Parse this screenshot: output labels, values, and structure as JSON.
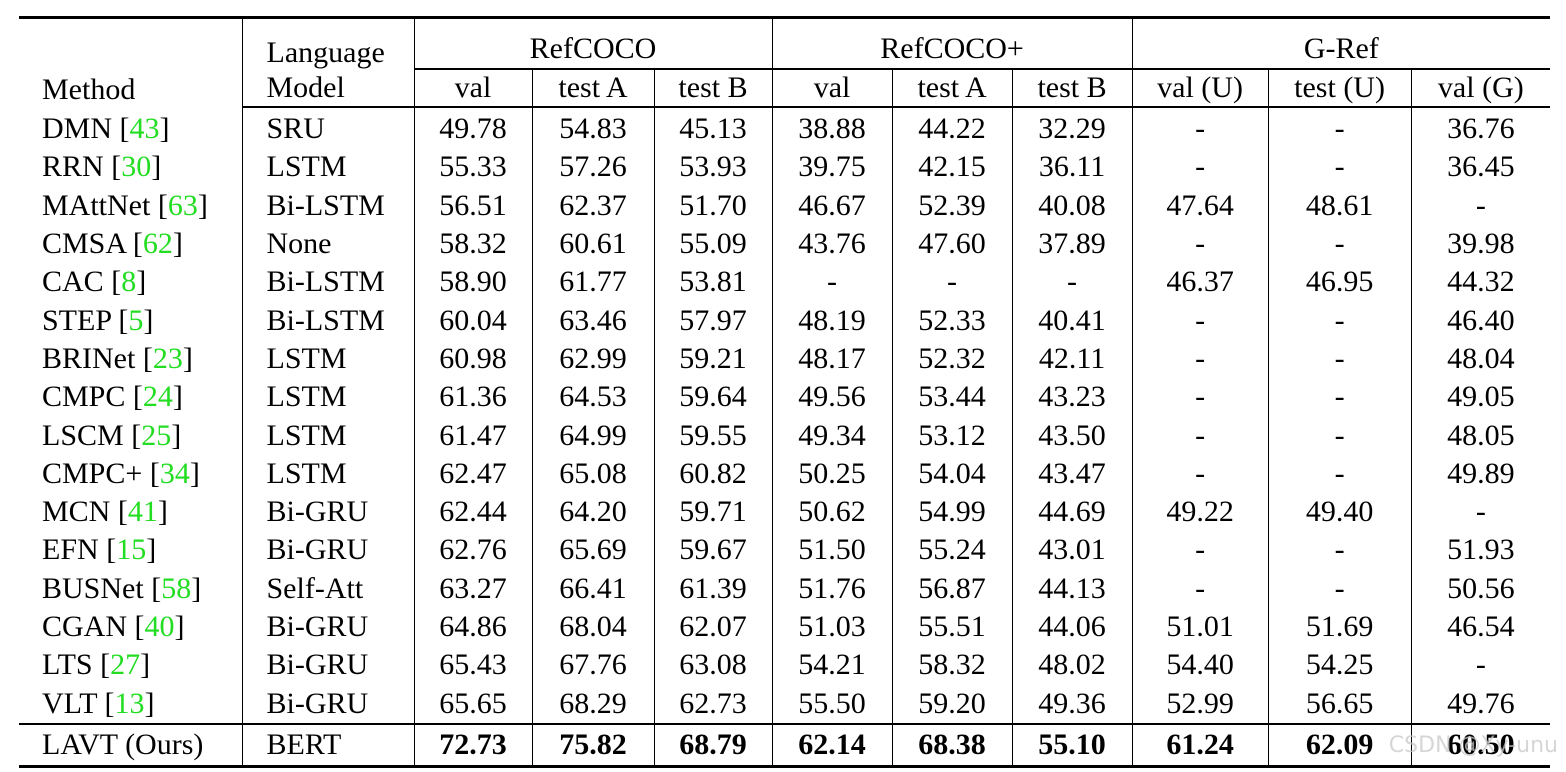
{
  "header": {
    "method": "Method",
    "lm_line1": "Language",
    "lm_line2": "Model",
    "groups": [
      "RefCOCO",
      "RefCOCO+",
      "G-Ref"
    ],
    "subcols": [
      "val",
      "test A",
      "test B",
      "val",
      "test A",
      "test B",
      "val (U)",
      "test (U)",
      "val (G)"
    ]
  },
  "rows": [
    {
      "method": "DMN",
      "ref": "43",
      "lm": "SRU",
      "values": [
        "49.78",
        "54.83",
        "45.13",
        "38.88",
        "44.22",
        "32.29",
        "-",
        "-",
        "36.76"
      ]
    },
    {
      "method": "RRN",
      "ref": "30",
      "lm": "LSTM",
      "values": [
        "55.33",
        "57.26",
        "53.93",
        "39.75",
        "42.15",
        "36.11",
        "-",
        "-",
        "36.45"
      ]
    },
    {
      "method": "MAttNet",
      "ref": "63",
      "lm": "Bi-LSTM",
      "values": [
        "56.51",
        "62.37",
        "51.70",
        "46.67",
        "52.39",
        "40.08",
        "47.64",
        "48.61",
        "-"
      ]
    },
    {
      "method": "CMSA",
      "ref": "62",
      "lm": "None",
      "values": [
        "58.32",
        "60.61",
        "55.09",
        "43.76",
        "47.60",
        "37.89",
        "-",
        "-",
        "39.98"
      ]
    },
    {
      "method": "CAC",
      "ref": "8",
      "lm": "Bi-LSTM",
      "values": [
        "58.90",
        "61.77",
        "53.81",
        "-",
        "-",
        "-",
        "46.37",
        "46.95",
        "44.32"
      ]
    },
    {
      "method": "STEP",
      "ref": "5",
      "lm": "Bi-LSTM",
      "values": [
        "60.04",
        "63.46",
        "57.97",
        "48.19",
        "52.33",
        "40.41",
        "-",
        "-",
        "46.40"
      ]
    },
    {
      "method": "BRINet",
      "ref": "23",
      "lm": "LSTM",
      "values": [
        "60.98",
        "62.99",
        "59.21",
        "48.17",
        "52.32",
        "42.11",
        "-",
        "-",
        "48.04"
      ]
    },
    {
      "method": "CMPC",
      "ref": "24",
      "lm": "LSTM",
      "values": [
        "61.36",
        "64.53",
        "59.64",
        "49.56",
        "53.44",
        "43.23",
        "-",
        "-",
        "49.05"
      ]
    },
    {
      "method": "LSCM",
      "ref": "25",
      "lm": "LSTM",
      "values": [
        "61.47",
        "64.99",
        "59.55",
        "49.34",
        "53.12",
        "43.50",
        "-",
        "-",
        "48.05"
      ]
    },
    {
      "method": "CMPC+",
      "ref": "34",
      "lm": "LSTM",
      "values": [
        "62.47",
        "65.08",
        "60.82",
        "50.25",
        "54.04",
        "43.47",
        "-",
        "-",
        "49.89"
      ]
    },
    {
      "method": "MCN",
      "ref": "41",
      "lm": "Bi-GRU",
      "values": [
        "62.44",
        "64.20",
        "59.71",
        "50.62",
        "54.99",
        "44.69",
        "49.22",
        "49.40",
        "-"
      ]
    },
    {
      "method": "EFN",
      "ref": "15",
      "lm": "Bi-GRU",
      "values": [
        "62.76",
        "65.69",
        "59.67",
        "51.50",
        "55.24",
        "43.01",
        "-",
        "-",
        "51.93"
      ]
    },
    {
      "method": "BUSNet",
      "ref": "58",
      "lm": "Self-Att",
      "values": [
        "63.27",
        "66.41",
        "61.39",
        "51.76",
        "56.87",
        "44.13",
        "-",
        "-",
        "50.56"
      ]
    },
    {
      "method": "CGAN",
      "ref": "40",
      "lm": "Bi-GRU",
      "values": [
        "64.86",
        "68.04",
        "62.07",
        "51.03",
        "55.51",
        "44.06",
        "51.01",
        "51.69",
        "46.54"
      ]
    },
    {
      "method": "LTS",
      "ref": "27",
      "lm": "Bi-GRU",
      "values": [
        "65.43",
        "67.76",
        "63.08",
        "54.21",
        "58.32",
        "48.02",
        "54.40",
        "54.25",
        "-"
      ]
    },
    {
      "method": "VLT",
      "ref": "13",
      "lm": "Bi-GRU",
      "values": [
        "65.65",
        "68.29",
        "62.73",
        "55.50",
        "59.20",
        "49.36",
        "52.99",
        "56.65",
        "49.76"
      ]
    }
  ],
  "ours": {
    "method": "LAVT (Ours)",
    "lm": "BERT",
    "values": [
      "72.73",
      "75.82",
      "68.79",
      "62.14",
      "68.38",
      "55.10",
      "61.24",
      "62.09",
      "60.50"
    ]
  },
  "watermark": "CSDN @Xy-unu",
  "colors": {
    "reference_link": "#22dd22",
    "text": "#000000",
    "background": "#ffffff"
  }
}
